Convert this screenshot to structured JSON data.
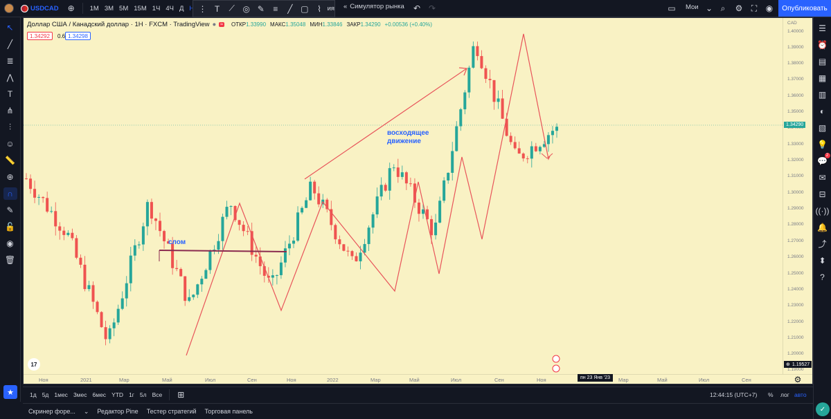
{
  "topbar": {
    "symbol": "USDCAD",
    "intervals": [
      "1М",
      "3М",
      "5М",
      "15М",
      "1Ч",
      "4Ч",
      "Д",
      "Н"
    ],
    "active_interval": "Н",
    "replay_label": "Симулятор рынка",
    "layout_name": "Мои",
    "publish_label": "Опубликовать",
    "hidden_label_fragment": "ия"
  },
  "legend": {
    "title": "Доллар США / Канадский доллар · 1Н · FXCM · TradingView",
    "open_label": "ОТКР",
    "open_value": "1.33990",
    "high_label": "МАКС",
    "high_value": "1.35048",
    "low_label": "МИН",
    "low_value": "1.33846",
    "close_label": "ЗАКР",
    "close_value": "1.34290",
    "change": "+0.00536 (+0.40%)",
    "bid": "1.34292",
    "spread": "0.6",
    "ask": "1.34298"
  },
  "yaxis": {
    "currency": "CAD",
    "labels": [
      "1.40000",
      "1.39000",
      "1.38000",
      "1.37000",
      "1.36000",
      "1.35000",
      "1.34000",
      "1.33000",
      "1.32000",
      "1.31000",
      "1.30000",
      "1.29000",
      "1.28000",
      "1.27000",
      "1.26000",
      "1.25000",
      "1.24000",
      "1.23000",
      "1.22000",
      "1.21000",
      "1.20000",
      "1.19000"
    ],
    "current_price": "1.34290",
    "low_marker": "1.19527"
  },
  "xaxis": {
    "labels": [
      "Ноя",
      "2021",
      "Мар",
      "Май",
      "Июл",
      "Сен",
      "Ноя",
      "2022",
      "Мар",
      "Май",
      "Июл",
      "Сен",
      "Ноя",
      "Мар",
      "Май",
      "Июл",
      "Сен"
    ],
    "crosshair_date": "пн 23 Янв '23"
  },
  "annotations": {
    "rising": [
      "восходящее",
      "движение"
    ],
    "break": "слом"
  },
  "ranges": {
    "items": [
      "1д",
      "5д",
      "1мес",
      "3мес",
      "6мес",
      "YTD",
      "1г",
      "5л",
      "Все"
    ],
    "time": "12:44:15 (UTC+7)",
    "pct": "%",
    "log": "лог",
    "auto": "авто"
  },
  "bottom": {
    "tabs": [
      "Скринер форе...",
      "Редактор Pine",
      "Тестер стратегий",
      "Торговая панель"
    ]
  },
  "notifications_badge": "2",
  "chart_data": {
    "type": "candlestick",
    "symbol": "USDCAD",
    "timeframe": "1W",
    "ylim": [
      1.19,
      1.405
    ],
    "close_last": 1.3429,
    "approx_path": [
      {
        "x": "2020-11",
        "y": 1.31
      },
      {
        "x": "2021-01",
        "y": 1.275
      },
      {
        "x": "2021-05",
        "y": 1.205
      },
      {
        "x": "2021-08",
        "y": 1.295
      },
      {
        "x": "2021-11",
        "y": 1.23
      },
      {
        "x": "2022-01",
        "y": 1.295
      },
      {
        "x": "2022-04",
        "y": 1.24
      },
      {
        "x": "2022-05",
        "y": 1.305
      },
      {
        "x": "2022-06",
        "y": 1.255
      },
      {
        "x": "2022-07",
        "y": 1.32
      },
      {
        "x": "2022-08",
        "y": 1.275
      },
      {
        "x": "2022-10",
        "y": 1.398
      },
      {
        "x": "2022-11",
        "y": 1.322
      },
      {
        "x": "2023-01",
        "y": 1.3429
      }
    ]
  }
}
